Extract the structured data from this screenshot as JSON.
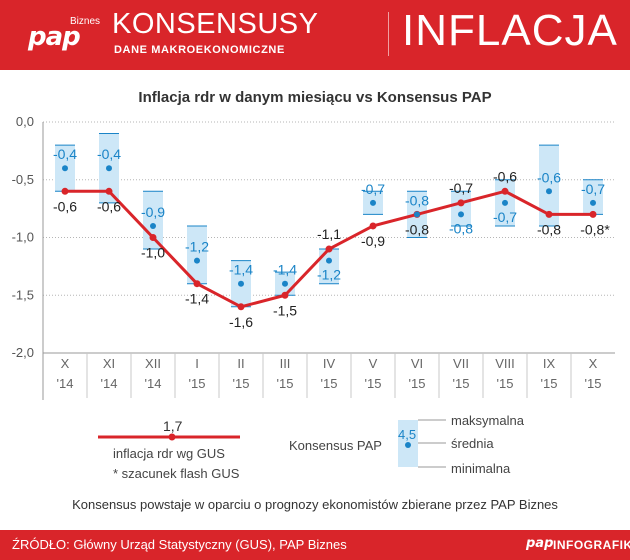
{
  "header": {
    "logo": "pap",
    "logo_sub": "Biznes",
    "title": "KONSENSUSY",
    "subtitle": "DANE MAKROEKONOMICZNE",
    "topic": "INFLACJA"
  },
  "chart_data": {
    "type": "line",
    "title": "Inflacja rdr w danym miesiącu vs Konsensus PAP",
    "categories": [
      [
        "X",
        "'14"
      ],
      [
        "XI",
        "'14"
      ],
      [
        "XII",
        "'14"
      ],
      [
        "I",
        "'15"
      ],
      [
        "II",
        "'15"
      ],
      [
        "III",
        "'15"
      ],
      [
        "IV",
        "'15"
      ],
      [
        "V",
        "'15"
      ],
      [
        "VI",
        "'15"
      ],
      [
        "VII",
        "'15"
      ],
      [
        "VIII",
        "'15"
      ],
      [
        "IX",
        "'15"
      ],
      [
        "X",
        "'15"
      ]
    ],
    "y_ticks": [
      "0,0",
      "-0,5",
      "-1,0",
      "-1,5",
      "-2,0"
    ],
    "ylim": [
      -2.0,
      0.0
    ],
    "series": [
      {
        "name": "inflacja rdr wg GUS",
        "color": "#d9252a",
        "values": [
          -0.6,
          -0.6,
          -1.0,
          -1.4,
          -1.6,
          -1.5,
          -1.1,
          -0.9,
          -0.8,
          -0.7,
          -0.6,
          -0.8,
          -0.8
        ],
        "labels": [
          "-0,6",
          "-0,6",
          "-1,0",
          "-1,4",
          "-1,6",
          "-1,5",
          "-1,1",
          "-0,9",
          "-0,8",
          "-0,7",
          "-0,6",
          "-0,8",
          "-0,8*"
        ]
      },
      {
        "name": "Konsensus PAP",
        "color": "#1a84c7",
        "values": [
          -0.4,
          -0.4,
          -0.9,
          -1.2,
          -1.4,
          -1.4,
          -1.2,
          -0.7,
          -0.8,
          -0.8,
          -0.7,
          -0.6,
          -0.7
        ],
        "labels": [
          "-0,4",
          "-0,4",
          "-0,9",
          "-1,2",
          "-1,4",
          "-1,4",
          "-1,2",
          "-0,7",
          "-0,8",
          "-0,8",
          "-0,7",
          "-0,6",
          "-0,7"
        ],
        "max": [
          -0.2,
          -0.1,
          -0.6,
          -0.9,
          -1.2,
          -1.3,
          -1.1,
          -0.6,
          -0.6,
          -0.6,
          -0.5,
          -0.2,
          -0.5
        ],
        "min": [
          -0.6,
          -0.7,
          -1.1,
          -1.4,
          -1.6,
          -1.5,
          -1.4,
          -0.8,
          -1.0,
          -0.9,
          -0.9,
          -0.9,
          -0.8
        ]
      }
    ]
  },
  "legend": {
    "sample_value": "1,7",
    "line_label": "inflacja rdr wg GUS",
    "flash_note": "* szacunek flash GUS",
    "consensus_label": "Konsensus PAP",
    "consensus_sample": "4,5",
    "max_label": "maksymalna",
    "mid_label": "średnia",
    "min_label": "minimalna"
  },
  "note": "Konsensus powstaje w oparciu o prognozy ekonomistów zbierane przez PAP Biznes",
  "footer": {
    "source": "ŹRÓDŁO: Główny Urząd Statystyczny (GUS), PAP Biznes",
    "logo": "pap",
    "brand": "INFOGRAFIKA"
  },
  "colors": {
    "brand_red": "#d9252a",
    "consensus_blue": "#1a84c7",
    "band_fill": "#cde7f7"
  }
}
